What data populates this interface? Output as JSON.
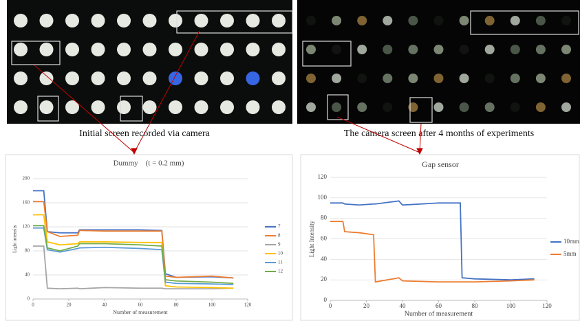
{
  "captions": [
    "Initial screen recorded via camera",
    "The camera screen after 4 months of experiments"
  ],
  "chart_data": [
    {
      "type": "line",
      "title": "Dummy (t = 0.2 mm)",
      "x_label": "Number of measurement",
      "y_label": "Light intensity",
      "x": [
        0,
        6,
        8,
        15,
        25,
        26,
        40,
        60,
        72,
        74,
        80,
        100,
        112
      ],
      "series": [
        {
          "name": "7",
          "color": "#4472c4",
          "values": [
            180,
            180,
            112,
            110,
            110,
            115,
            115,
            115,
            114,
            42,
            36,
            37,
            35
          ]
        },
        {
          "name": "8",
          "color": "#ed7d31",
          "values": [
            162,
            162,
            112,
            104,
            106,
            114,
            113,
            113,
            113,
            38,
            36,
            38,
            35
          ]
        },
        {
          "name": "9",
          "color": "#a5a5a5",
          "values": [
            88,
            88,
            18,
            17,
            18,
            17,
            19,
            18,
            18,
            17,
            17,
            17,
            18
          ]
        },
        {
          "name": "10",
          "color": "#ffc000",
          "values": [
            140,
            140,
            95,
            90,
            92,
            95,
            95,
            94,
            94,
            22,
            20,
            19,
            18
          ]
        },
        {
          "name": "11",
          "color": "#5b9bd5",
          "values": [
            118,
            118,
            82,
            78,
            84,
            85,
            86,
            84,
            82,
            28,
            26,
            25,
            24
          ]
        },
        {
          "name": "12",
          "color": "#70ad47",
          "values": [
            122,
            122,
            85,
            80,
            88,
            92,
            92,
            90,
            88,
            32,
            30,
            28,
            26
          ]
        }
      ],
      "xlim": [
        0,
        120
      ],
      "xticks": [
        0,
        20,
        40,
        60,
        80,
        100,
        120
      ],
      "ylim": [
        0,
        200
      ],
      "yticks": [
        0,
        40,
        80,
        120,
        160,
        200
      ],
      "grid": true,
      "legend": "right"
    },
    {
      "type": "line",
      "title": "Gap sensor",
      "x_label": "Number of  measurement",
      "y_label": "Light Intensity",
      "x": [
        0,
        7,
        8,
        16,
        24,
        25,
        38,
        40,
        60,
        72,
        73,
        80,
        100,
        113
      ],
      "series": [
        {
          "name": "10mm",
          "color": "#4472c4",
          "values": [
            95,
            95,
            94,
            93,
            94,
            94,
            97,
            93,
            95,
            95,
            22,
            21,
            20,
            21
          ]
        },
        {
          "name": "5mm",
          "color": "#ed7d31",
          "values": [
            77,
            77,
            67,
            66,
            64,
            18,
            22,
            19,
            18,
            18,
            18,
            18,
            19,
            20
          ]
        }
      ],
      "xlim": [
        0,
        120
      ],
      "xticks": [
        0,
        20,
        40,
        60,
        80,
        100,
        120
      ],
      "ylim": [
        0,
        120
      ],
      "yticks": [
        0,
        20,
        40,
        60,
        80,
        100,
        120
      ],
      "grid": true,
      "legend": "right"
    }
  ]
}
